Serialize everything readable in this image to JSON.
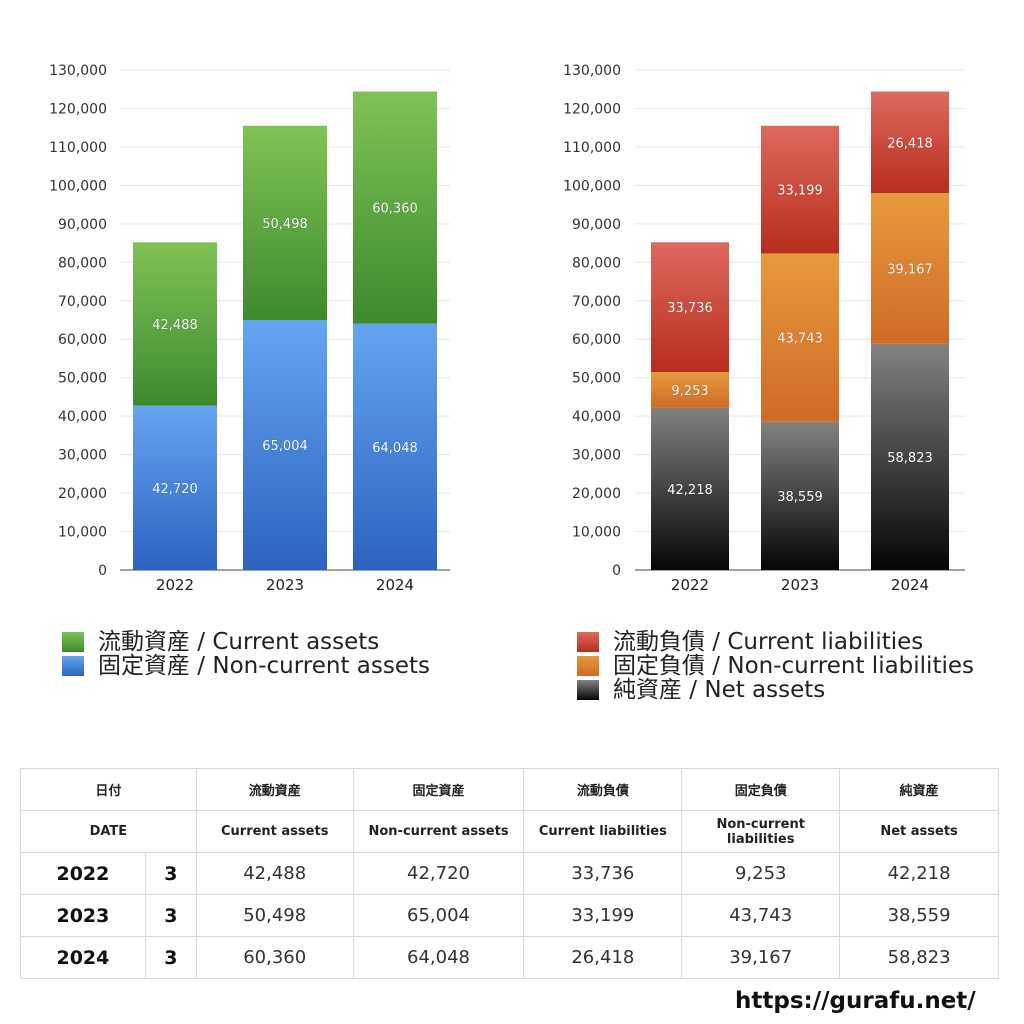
{
  "chart_data": [
    {
      "type": "bar",
      "stacked": true,
      "categories": [
        "2022",
        "2023",
        "2024"
      ],
      "ylim": [
        0,
        130000
      ],
      "yticks": [
        0,
        10000,
        20000,
        30000,
        40000,
        50000,
        60000,
        70000,
        80000,
        90000,
        100000,
        110000,
        120000,
        130000
      ],
      "ytick_labels": [
        "0",
        "10,000",
        "20,000",
        "30,000",
        "40,000",
        "50,000",
        "60,000",
        "70,000",
        "80,000",
        "90,000",
        "100,000",
        "110,000",
        "120,000",
        "130,000"
      ],
      "grid": true,
      "legend_position": "bottom",
      "series": [
        {
          "name": "固定資産 / Non-current assets",
          "values": [
            42720,
            65004,
            64048
          ],
          "labels": [
            "42,720",
            "65,004",
            "64,048"
          ],
          "color_top": "#64a5f2",
          "color_bottom": "#2c63c0"
        },
        {
          "name": "流動資産 / Current assets",
          "values": [
            42488,
            50498,
            60360
          ],
          "labels": [
            "42,488",
            "50,498",
            "60,360"
          ],
          "color_top": "#7fc354",
          "color_bottom": "#3d8a2e"
        }
      ],
      "legend_order": [
        1,
        0
      ]
    },
    {
      "type": "bar",
      "stacked": true,
      "categories": [
        "2022",
        "2023",
        "2024"
      ],
      "ylim": [
        0,
        130000
      ],
      "yticks": [
        0,
        10000,
        20000,
        30000,
        40000,
        50000,
        60000,
        70000,
        80000,
        90000,
        100000,
        110000,
        120000,
        130000
      ],
      "ytick_labels": [
        "0",
        "10,000",
        "20,000",
        "30,000",
        "40,000",
        "50,000",
        "60,000",
        "70,000",
        "80,000",
        "90,000",
        "100,000",
        "110,000",
        "120,000",
        "130,000"
      ],
      "grid": true,
      "legend_position": "bottom",
      "series": [
        {
          "name": "純資産 / Net assets",
          "values": [
            42218,
            38559,
            58823
          ],
          "labels": [
            "42,218",
            "38,559",
            "58,823"
          ],
          "color_top": "#828282",
          "color_bottom": "#050505"
        },
        {
          "name": "固定負債 / Non-current liabilities",
          "values": [
            9253,
            43743,
            39167
          ],
          "labels": [
            "9,253",
            "43,743",
            "39,167"
          ],
          "color_top": "#e89a3c",
          "color_bottom": "#cf6a28"
        },
        {
          "name": "流動負債 / Current liabilities",
          "values": [
            33736,
            33199,
            26418
          ],
          "labels": [
            "33,736",
            "33,199",
            "26,418"
          ],
          "color_top": "#dd6a5e",
          "color_bottom": "#b82d1e"
        }
      ],
      "legend_order": [
        2,
        1,
        0
      ]
    }
  ],
  "table": {
    "header_jp": [
      "日付",
      "流動資産",
      "固定資産",
      "流動負債",
      "固定負債",
      "純資産"
    ],
    "header_en": [
      "DATE",
      "Current assets",
      "Non-current assets",
      "Current liabilities",
      "Non-current liabilities",
      "Net assets"
    ],
    "rows": [
      {
        "year": "2022",
        "month": "3",
        "current_assets": "42,488",
        "noncurrent_assets": "42,720",
        "current_liabilities": "33,736",
        "noncurrent_liabilities": "9,253",
        "net_assets": "42,218"
      },
      {
        "year": "2023",
        "month": "3",
        "current_assets": "50,498",
        "noncurrent_assets": "65,004",
        "current_liabilities": "33,199",
        "noncurrent_liabilities": "43,743",
        "net_assets": "38,559"
      },
      {
        "year": "2024",
        "month": "3",
        "current_assets": "60,360",
        "noncurrent_assets": "64,048",
        "current_liabilities": "26,418",
        "noncurrent_liabilities": "39,167",
        "net_assets": "58,823"
      }
    ]
  },
  "footer": {
    "site": "https://gurafu.net/"
  }
}
